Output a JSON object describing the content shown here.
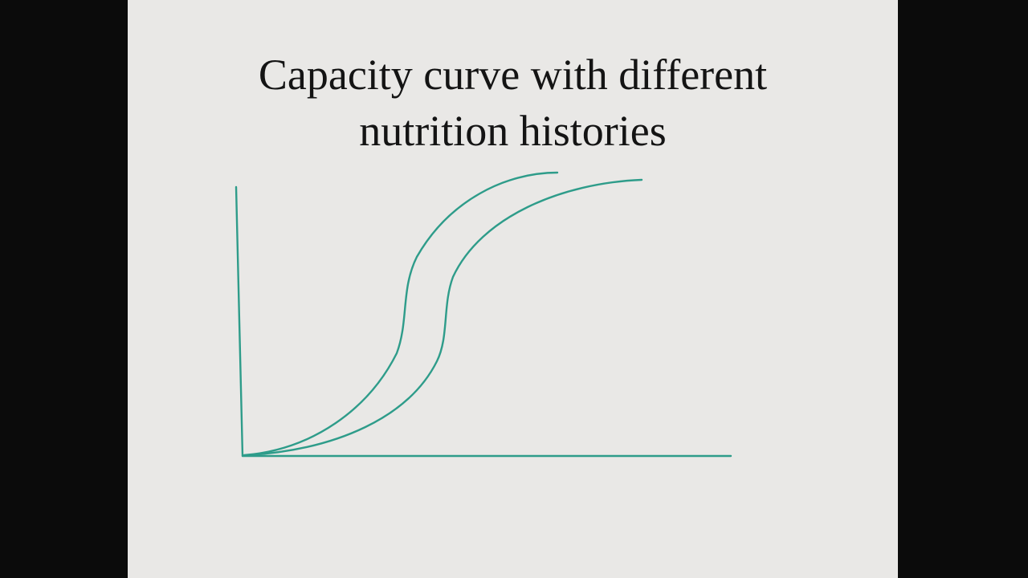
{
  "slide": {
    "title_lines": [
      "Capacity curve with different",
      "nutrition histories"
    ]
  },
  "colors": {
    "background_outer": "#0b0b0b",
    "slide_background": "#e9e8e6",
    "title_text": "#141414",
    "curve_stroke": "#2e9c8a"
  },
  "diagram": {
    "type": "line",
    "description_shapes": [
      "y-axis",
      "x-axis",
      "capacity-curve-1",
      "capacity-curve-2"
    ]
  }
}
